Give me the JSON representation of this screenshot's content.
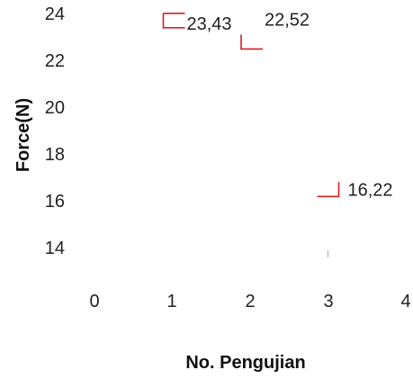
{
  "chart_data": {
    "type": "line",
    "xlabel": "No. Pengujian",
    "ylabel": "Force(N)",
    "xlim": [
      0,
      4
    ],
    "ylim": [
      14,
      24
    ],
    "x_ticks": [
      "0",
      "1",
      "2",
      "3",
      "4"
    ],
    "y_ticks": [
      "14",
      "16",
      "18",
      "20",
      "22",
      "24"
    ],
    "grid": false,
    "legend": "none",
    "series": [
      {
        "x": [
          1,
          2,
          3
        ],
        "y": [
          23.43,
          22.52,
          16.22
        ],
        "labels": [
          "23,43",
          "22,52",
          "16,22"
        ],
        "color": "#d42020",
        "marker": "bracket"
      }
    ]
  }
}
